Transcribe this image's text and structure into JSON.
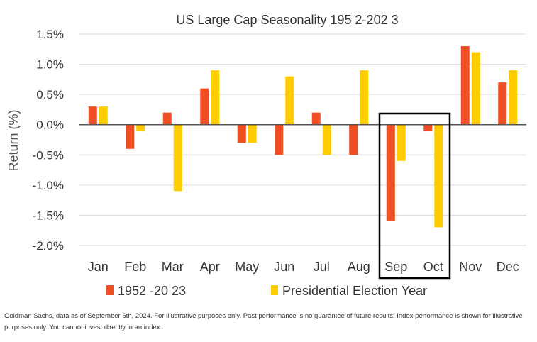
{
  "chart_data": {
    "type": "bar",
    "title": "US Large Cap Seasonality 195 2-202 3",
    "xlabel": "",
    "ylabel": "Return (%)",
    "ylim": [
      -2.0,
      1.5
    ],
    "yticks": [
      1.5,
      1.0,
      0.5,
      0.0,
      -0.5,
      -1.0,
      -1.5,
      -2.0
    ],
    "ytick_labels": [
      "1.5%",
      "1.0%",
      "0.5%",
      "0.0%",
      "-0.5%",
      "-1.0%",
      "-1.5%",
      "-2.0%"
    ],
    "grid": true,
    "legend_position": "bottom",
    "categories": [
      "Jan",
      "Feb",
      "Mar",
      "Apr",
      "May",
      "Jun",
      "Jul",
      "Aug",
      "Sep",
      "Oct",
      "Nov",
      "Dec"
    ],
    "series": [
      {
        "name": "1952 -20 23",
        "color": "#f04e23",
        "values": [
          0.3,
          -0.4,
          0.2,
          0.6,
          -0.3,
          -0.5,
          0.2,
          -0.5,
          -1.6,
          -0.1,
          1.3,
          0.7
        ]
      },
      {
        "name": "Presidential Election Year",
        "color": "#ffcc00",
        "values": [
          0.3,
          -0.1,
          -1.1,
          0.9,
          -0.3,
          0.8,
          -0.5,
          0.9,
          -0.6,
          -1.7,
          1.2,
          0.9
        ]
      }
    ],
    "highlight_categories": [
      "Sep",
      "Oct"
    ]
  },
  "footnote": "Goldman Sachs, data as of September 6th, 2024. For illustrative purposes only.  Past performance is no guarantee of future results. Index performance is shown for illustrative purposes only. You cannot invest directly in an index."
}
